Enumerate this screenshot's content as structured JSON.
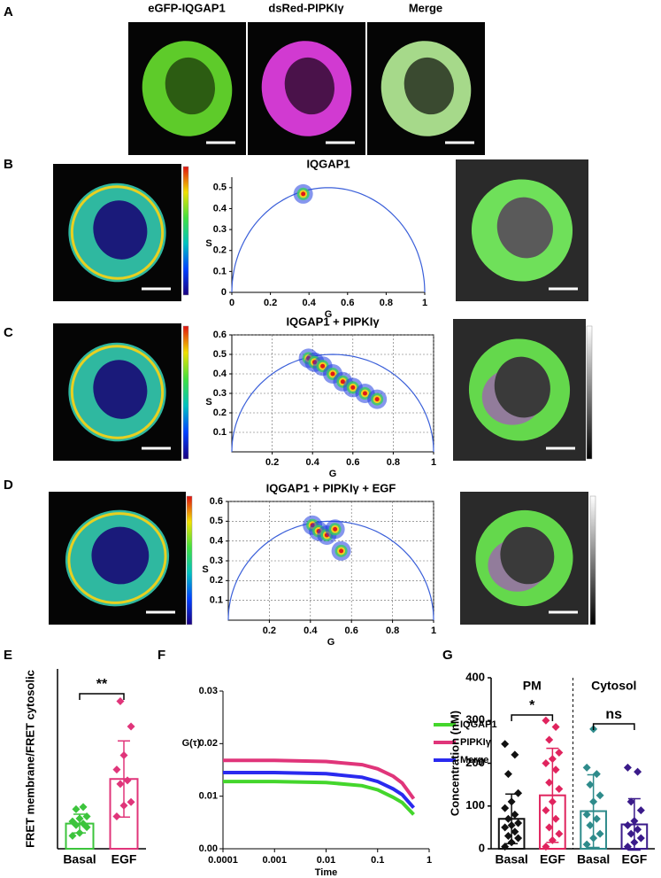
{
  "panel_labels": [
    "A",
    "B",
    "C",
    "D",
    "E",
    "F",
    "G"
  ],
  "panel_a": {
    "channels": [
      "eGFP-IQGAP1",
      "dsRed-PIPKIγ",
      "Merge"
    ]
  },
  "chart_data": [
    {
      "type": "phasor",
      "title": "IQGAP1",
      "x_label": "G",
      "y_label": "S",
      "x": [
        0.37
      ],
      "y": [
        0.47
      ],
      "xlim": [
        0,
        1
      ],
      "ylim": [
        0,
        0.55
      ],
      "xticks": [
        0,
        0.2,
        0.4,
        0.6,
        0.8,
        1
      ],
      "yticks": [
        0,
        0.1,
        0.2,
        0.3,
        0.4,
        0.5
      ],
      "grid": false,
      "color": "#3a5fd9"
    },
    {
      "type": "phasor",
      "title": "IQGAP1 + PIPKIγ",
      "x_label": "G",
      "y_label": "S",
      "x": [
        0.38,
        0.41,
        0.45,
        0.5,
        0.55,
        0.6,
        0.66,
        0.72
      ],
      "y": [
        0.48,
        0.46,
        0.44,
        0.4,
        0.36,
        0.33,
        0.3,
        0.27
      ],
      "xlim": [
        0,
        1
      ],
      "ylim": [
        0,
        0.6
      ],
      "xticks": [
        0.2,
        0.4,
        0.6,
        0.8,
        1
      ],
      "yticks": [
        0.1,
        0.2,
        0.3,
        0.4,
        0.5,
        0.6
      ],
      "grid": true,
      "color": "#3a5fd9"
    },
    {
      "type": "phasor",
      "title": "IQGAP1 + PIPKIγ + EGF",
      "x_label": "G",
      "y_label": "S",
      "x": [
        0.41,
        0.44,
        0.48,
        0.52,
        0.55
      ],
      "y": [
        0.48,
        0.45,
        0.43,
        0.46,
        0.35
      ],
      "xlim": [
        0,
        1
      ],
      "ylim": [
        0,
        0.6
      ],
      "xticks": [
        0.2,
        0.4,
        0.6,
        0.8,
        1
      ],
      "yticks": [
        0.1,
        0.2,
        0.3,
        0.4,
        0.5,
        0.6
      ],
      "grid": true,
      "color": "#3a5fd9"
    },
    {
      "type": "bar_dot",
      "y_label": "FRET membrane/FRET cytosolic",
      "categories": [
        "Basal",
        "EGF"
      ],
      "values": [
        0.35,
        0.97
      ],
      "errors": [
        0.13,
        0.53
      ],
      "points": [
        [
          0.18,
          0.22,
          0.3,
          0.33,
          0.35,
          0.38,
          0.42,
          0.45,
          0.55,
          0.58
        ],
        [
          0.45,
          0.6,
          0.65,
          0.9,
          0.95,
          1.1,
          1.3,
          1.7,
          2.05
        ]
      ],
      "colors": [
        "#3cc43c",
        "#e0357a"
      ],
      "ylim": [
        0,
        2.5
      ],
      "annotations": [
        "**"
      ]
    },
    {
      "type": "line",
      "x_label": "Time",
      "y_label": "G(τ)",
      "log_x": true,
      "x": [
        0.0001,
        0.001,
        0.01,
        0.05,
        0.1,
        0.2,
        0.3,
        0.5
      ],
      "series": [
        {
          "name": "IQGAP1",
          "color": "#44d62c",
          "values": [
            0.0128,
            0.0128,
            0.0126,
            0.012,
            0.0112,
            0.0098,
            0.0088,
            0.0065
          ]
        },
        {
          "name": "PIPKIγ",
          "color": "#e0357a",
          "values": [
            0.0168,
            0.0168,
            0.0166,
            0.016,
            0.0152,
            0.0138,
            0.0125,
            0.0095
          ]
        },
        {
          "name": "Merge",
          "color": "#2a2aef",
          "values": [
            0.0145,
            0.0145,
            0.0143,
            0.0136,
            0.0128,
            0.0114,
            0.0103,
            0.0078
          ]
        }
      ],
      "xlim": [
        0.0001,
        1
      ],
      "ylim": [
        0,
        0.03
      ],
      "xticks": [
        0.0001,
        0.001,
        0.01,
        0.1,
        1
      ],
      "yticks": [
        {
          "value": 0,
          "label": "0.00"
        },
        0.01,
        0.02,
        0.03
      ],
      "grid": false
    },
    {
      "type": "bar_dot",
      "y_label": "Concentration (nM)",
      "categories": [
        "Basal",
        "EGF",
        "Basal",
        "EGF"
      ],
      "groups": [
        "PM",
        "Cytosol"
      ],
      "values": [
        70,
        125,
        88,
        57
      ],
      "errors": [
        58,
        110,
        85,
        60
      ],
      "points": [
        [
          5,
          15,
          25,
          30,
          40,
          50,
          55,
          60,
          70,
          80,
          95,
          110,
          130,
          175,
          220,
          245
        ],
        [
          5,
          20,
          35,
          50,
          70,
          90,
          110,
          140,
          155,
          185,
          200,
          210,
          225,
          255,
          285,
          300
        ],
        [
          10,
          25,
          35,
          55,
          70,
          80,
          110,
          125,
          150,
          175,
          190,
          280
        ],
        [
          5,
          15,
          25,
          35,
          45,
          55,
          65,
          90,
          110,
          180,
          190
        ]
      ],
      "colors": [
        "#111111",
        "#e0245e",
        "#2e8b8b",
        "#3a1a8a"
      ],
      "ylim": [
        0,
        400
      ],
      "yticks": [
        0,
        100,
        200,
        300,
        400
      ],
      "annotations": [
        "*",
        "ns"
      ]
    }
  ]
}
